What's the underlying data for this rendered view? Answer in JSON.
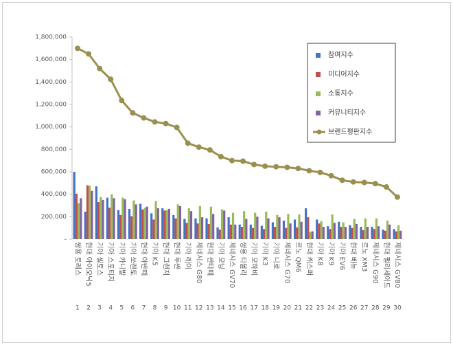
{
  "chart_data": {
    "type": "bar",
    "categories": [
      "쌍용 토레스",
      "현대 아이오닉5",
      "기아 셀토스",
      "기아 스포티지",
      "기아 카니발",
      "기아 쏘렌토",
      "현대 아반떼",
      "기아 K5",
      "현대 그랜저",
      "현대 투싼",
      "기아 레이",
      "제네시스 G80",
      "현대 싼타페",
      "기아 모닝",
      "제네시스 GV70",
      "쌍용 티볼리",
      "기아 모하비",
      "기아 K3",
      "기아 니로",
      "제네시스 G70",
      "르노 QM6",
      "현대 캐스퍼",
      "기아 K8",
      "기아 K9",
      "기아 EV6",
      "현대 베뉴",
      "르노 XM3",
      "제네시스 G90",
      "현대 팰리세이드",
      "제네시스 GV80"
    ],
    "ranks": [
      1,
      2,
      3,
      4,
      5,
      6,
      7,
      8,
      9,
      10,
      11,
      12,
      13,
      14,
      15,
      16,
      17,
      18,
      19,
      20,
      21,
      22,
      23,
      24,
      25,
      26,
      27,
      28,
      29,
      30
    ],
    "series": [
      {
        "name": "참여지수",
        "color": "#4472c4",
        "type": "bar",
        "values": [
          600000,
          245000,
          470000,
          370000,
          260000,
          270000,
          315000,
          230000,
          275000,
          215000,
          180000,
          185000,
          185000,
          105000,
          195000,
          130000,
          130000,
          120000,
          150000,
          165000,
          175000,
          275000,
          175000,
          115000,
          155000,
          125000,
          110000,
          110000,
          85000,
          90000
        ]
      },
      {
        "name": "미디어지수",
        "color": "#c0504d",
        "type": "bar",
        "values": [
          405000,
          480000,
          330000,
          280000,
          215000,
          205000,
          265000,
          175000,
          255000,
          185000,
          145000,
          140000,
          135000,
          85000,
          130000,
          110000,
          100000,
          90000,
          110000,
          100000,
          105000,
          195000,
          140000,
          90000,
          110000,
          100000,
          80000,
          90000,
          75000,
          70000
        ]
      },
      {
        "name": "소통지수",
        "color": "#9bbb59",
        "type": "bar",
        "values": [
          320000,
          475000,
          375000,
          400000,
          370000,
          345000,
          280000,
          340000,
          260000,
          310000,
          275000,
          295000,
          290000,
          265000,
          235000,
          250000,
          235000,
          245000,
          215000,
          225000,
          220000,
          65000,
          160000,
          220000,
          150000,
          180000,
          185000,
          185000,
          165000,
          125000
        ]
      },
      {
        "name": "커뮤니티지수",
        "color": "#8064a2",
        "type": "bar",
        "values": [
          365000,
          430000,
          350000,
          365000,
          355000,
          310000,
          290000,
          275000,
          270000,
          295000,
          250000,
          195000,
          225000,
          255000,
          130000,
          180000,
          200000,
          185000,
          195000,
          140000,
          155000,
          70000,
          110000,
          145000,
          110000,
          135000,
          110000,
          115000,
          130000,
          75000
        ]
      },
      {
        "name": "브랜드평판지수",
        "color": "#998f4e",
        "type": "line",
        "values": [
          1700000,
          1650000,
          1520000,
          1425000,
          1235000,
          1125000,
          1080000,
          1045000,
          1030000,
          995000,
          855000,
          820000,
          795000,
          735000,
          700000,
          695000,
          665000,
          650000,
          645000,
          640000,
          630000,
          610000,
          595000,
          565000,
          525000,
          510000,
          505000,
          495000,
          465000,
          375000
        ]
      }
    ],
    "ylim": [
      0,
      1800000
    ],
    "yticks": [
      {
        "value": 0,
        "label": "-"
      },
      {
        "value": 200000,
        "label": "200,000"
      },
      {
        "value": 400000,
        "label": "400,000"
      },
      {
        "value": 600000,
        "label": "600,000"
      },
      {
        "value": 800000,
        "label": "800,000"
      },
      {
        "value": 1000000,
        "label": "1,000,000"
      },
      {
        "value": 1200000,
        "label": "1,200,000"
      },
      {
        "value": 1400000,
        "label": "1,400,000"
      },
      {
        "value": 1600000,
        "label": "1,600,000"
      },
      {
        "value": 1800000,
        "label": "1,800,000"
      }
    ],
    "grid": false,
    "legend": "upper right"
  }
}
